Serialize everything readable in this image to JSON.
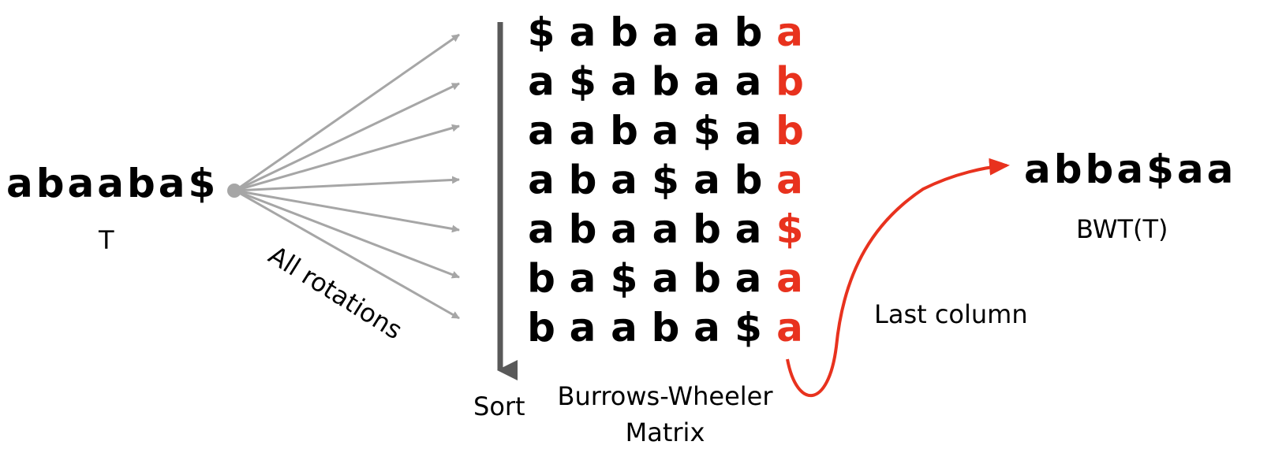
{
  "text_t": "abaaba$",
  "label_t": "T",
  "label_rotations": "All rotations",
  "label_sort": "Sort",
  "label_bwm_line1": "Burrows-Wheeler",
  "label_bwm_line2": "Matrix",
  "label_last_column": "Last column",
  "text_bwt": "abba$aa",
  "label_bwt": "BWT(T)",
  "matrix_rows": [
    "$abaaba",
    "a$abaab",
    "aaba$ab",
    "aba$aba",
    "abaaba$",
    "ba$abaa",
    "baaba$a"
  ],
  "colors": {
    "text": "#000000",
    "highlight": "#e8321e",
    "rotation_arrows": "#a6a6a6",
    "sort_arrow": "#595959"
  }
}
